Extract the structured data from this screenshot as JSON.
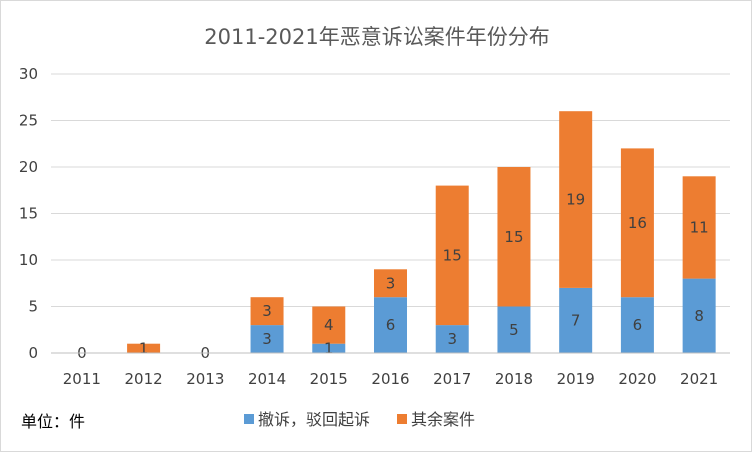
{
  "chart_data": {
    "type": "bar",
    "stacked": true,
    "title": "2011-2021年恶意诉讼案件年份分布",
    "unit_label": "单位：件",
    "categories": [
      "2011",
      "2012",
      "2013",
      "2014",
      "2015",
      "2016",
      "2017",
      "2018",
      "2019",
      "2020",
      "2021"
    ],
    "series": [
      {
        "name": "撤诉，驳回起诉",
        "color": "#5b9bd5",
        "values": [
          0,
          0,
          0,
          3,
          1,
          6,
          3,
          5,
          7,
          6,
          8
        ]
      },
      {
        "name": "其余案件",
        "color": "#ed7d31",
        "values": [
          0,
          1,
          0,
          3,
          4,
          3,
          15,
          15,
          19,
          16,
          11
        ]
      }
    ],
    "ylim": [
      0,
      30
    ],
    "yticks": [
      0,
      5,
      10,
      15,
      20,
      25,
      30
    ],
    "grid": true,
    "legend_position": "bottom"
  }
}
